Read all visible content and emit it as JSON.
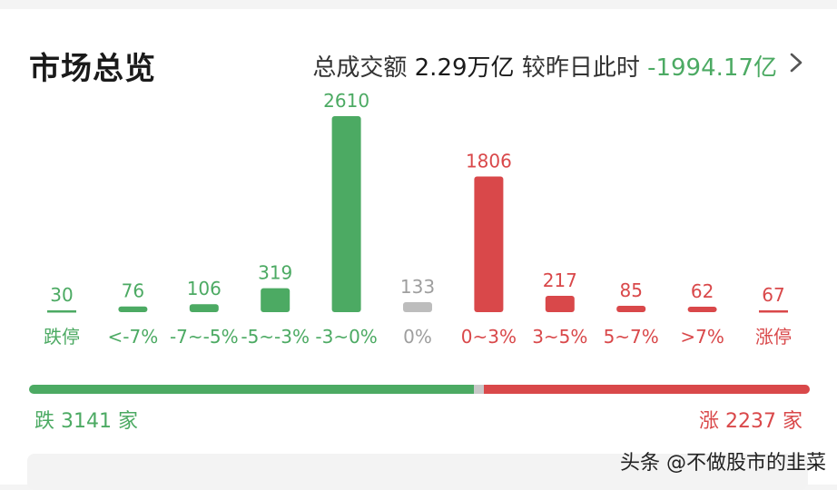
{
  "header": {
    "title": "市场总览",
    "turnover_label": "总成交额",
    "turnover_value": "2.29万亿",
    "compare_label": "较昨日此时",
    "compare_value": "-1994.17亿"
  },
  "chart_data": {
    "type": "bar",
    "categories": [
      "跌停",
      "<-7%",
      "-7~-5%",
      "-5~-3%",
      "-3~0%",
      "0%",
      "0~3%",
      "3~5%",
      "5~7%",
      ">7%",
      "涨停"
    ],
    "values": [
      30,
      76,
      106,
      319,
      2610,
      133,
      1806,
      217,
      85,
      62,
      67
    ],
    "bar_colors": [
      "#4caa63",
      "#4caa63",
      "#4caa63",
      "#4caa63",
      "#4caa63",
      "#bdbdbd",
      "#d9484a",
      "#d9484a",
      "#d9484a",
      "#d9484a",
      "#d9484a"
    ],
    "label_colors": [
      "#4caa63",
      "#4caa63",
      "#4caa63",
      "#4caa63",
      "#4caa63",
      "#9e9e9e",
      "#d9484a",
      "#d9484a",
      "#d9484a",
      "#d9484a",
      "#d9484a"
    ],
    "limit_marker_categories": [
      "跌停",
      "涨停"
    ],
    "ylim": [
      0,
      2610
    ]
  },
  "breadth": {
    "down_label": "跌 3141 家",
    "up_label": "涨 2237 家",
    "down": 3141,
    "flat": 133,
    "up": 2237
  },
  "watermark": "头条 @不做股市的韭菜",
  "colors": {
    "down": "#4caa63",
    "up": "#d9484a",
    "flat": "#bdbdbd"
  }
}
